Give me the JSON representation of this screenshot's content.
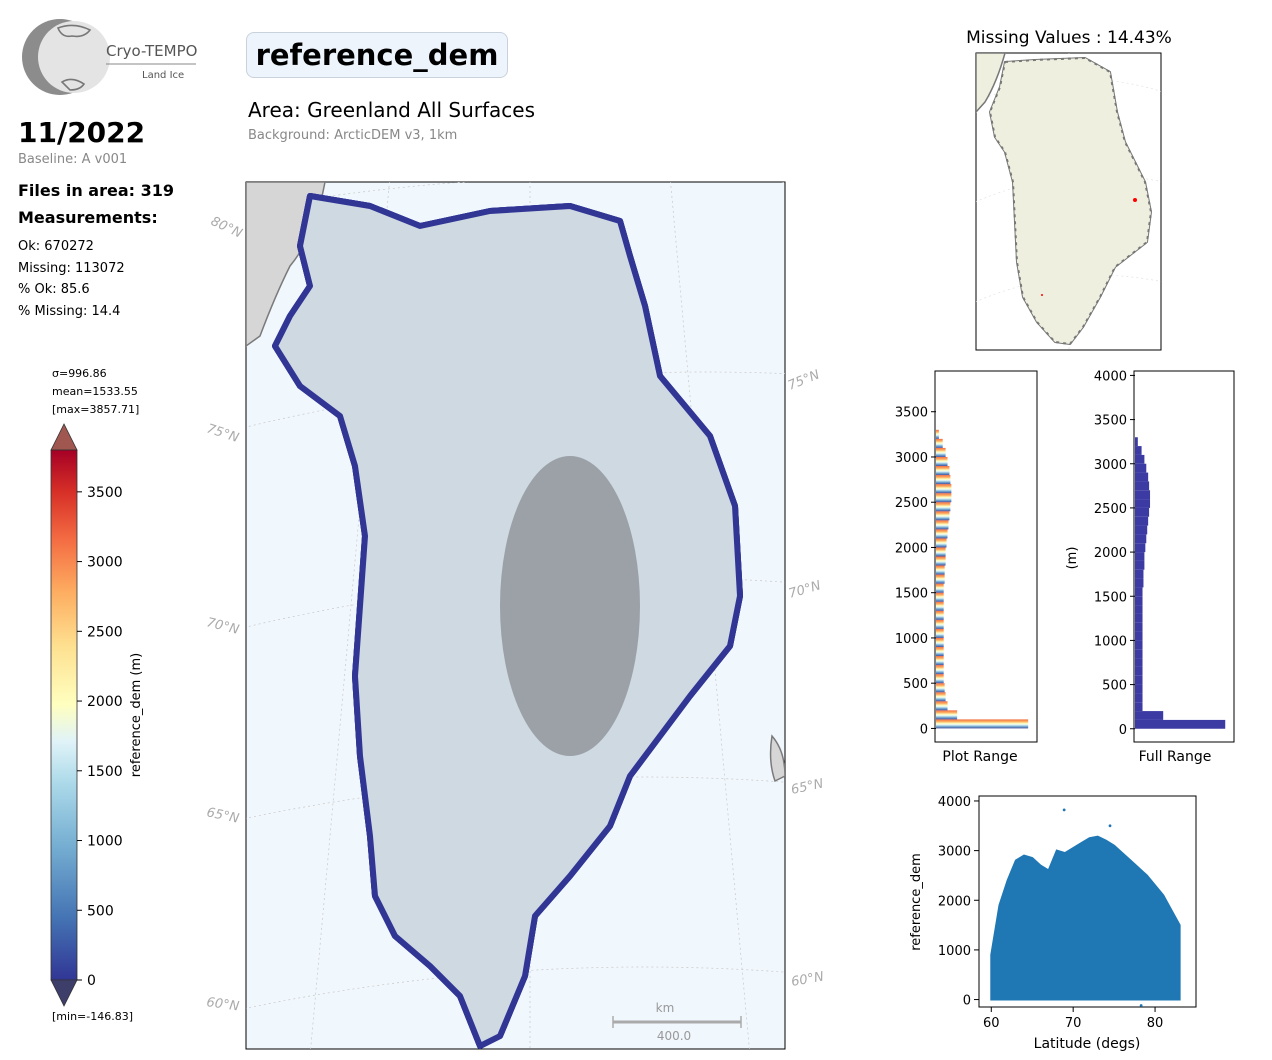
{
  "logo": {
    "name": "Cryo-TEMPO",
    "subtitle": "Land Ice"
  },
  "period": "11/2022",
  "baseline": "Baseline: A v001",
  "files_in_area": "Files in area: 319",
  "measurements_heading": "Measurements:",
  "measurements": [
    "Ok: 670272",
    "Missing: 113072",
    "% Ok: 85.6",
    "% Missing: 14.4"
  ],
  "param_title": "reference_dem",
  "area": "Area: Greenland All Surfaces",
  "background": "Background: ArcticDEM v3, 1km",
  "colorbar": {
    "stats": [
      "σ=996.86",
      "mean=1533.55",
      "[max=3857.71]"
    ],
    "min_label": "[min=-146.83]",
    "label": "reference_dem (m)",
    "ticks": [
      "3500",
      "3000",
      "2500",
      "2000",
      "1500",
      "1000",
      "500",
      "0"
    ]
  },
  "map": {
    "lat_labels_left": [
      "80°N",
      "75°N",
      "70°N",
      "65°N",
      "60°N"
    ],
    "lat_labels_right": [
      "75°N",
      "70°N",
      "65°N",
      "60°N"
    ],
    "scalebar_unit": "km",
    "scalebar_value": "400.0"
  },
  "missing_title": "Missing Values : 14.43%",
  "colors": {
    "track_low": "#313695",
    "track_high": "#a50026",
    "missing": "#ff0000",
    "land": "#efefdf",
    "hist_full": "#3b3ba3",
    "scatter": "#1f77b4"
  },
  "chart_data": [
    {
      "type": "bar",
      "orientation": "horizontal",
      "title": "",
      "xlabel": "Plot Range",
      "ylabel": "",
      "ylim": [
        -150,
        3950
      ],
      "y_ticks": [
        "0",
        "500",
        "1000",
        "1500",
        "2000",
        "2500",
        "3000",
        "3500"
      ],
      "bins": [
        0,
        100,
        200,
        300,
        400,
        500,
        600,
        700,
        800,
        900,
        1000,
        1100,
        1200,
        1300,
        1400,
        1500,
        1600,
        1700,
        1800,
        1900,
        2000,
        2100,
        2200,
        2300,
        2400,
        2500,
        2600,
        2700,
        2800,
        2900,
        3000,
        3100,
        3200
      ],
      "values": [
        96,
        22,
        12,
        10,
        9,
        8,
        8,
        8,
        8,
        8,
        8,
        8,
        8,
        8,
        8,
        8,
        9,
        9,
        10,
        10,
        11,
        12,
        13,
        14,
        15,
        16,
        16,
        15,
        14,
        12,
        10,
        7,
        3
      ]
    },
    {
      "type": "bar",
      "orientation": "horizontal",
      "title": "",
      "xlabel": "Full Range",
      "ylabel": "(m)",
      "ylim": [
        -150,
        4050
      ],
      "y_ticks": [
        "0",
        "500",
        "1000",
        "1500",
        "2000",
        "2500",
        "3000",
        "3500",
        "4000"
      ],
      "bins": [
        0,
        100,
        200,
        300,
        400,
        500,
        600,
        700,
        800,
        900,
        1000,
        1100,
        1200,
        1300,
        1400,
        1500,
        1600,
        1700,
        1800,
        1900,
        2000,
        2100,
        2200,
        2300,
        2400,
        2500,
        2600,
        2700,
        2800,
        2900,
        3000,
        3100,
        3200
      ],
      "values": [
        96,
        30,
        8,
        8,
        8,
        8,
        8,
        8,
        8,
        8,
        8,
        8,
        8,
        8,
        8,
        8,
        9,
        9,
        10,
        10,
        11,
        12,
        13,
        14,
        15,
        16,
        16,
        15,
        14,
        12,
        10,
        7,
        3
      ]
    },
    {
      "type": "scatter",
      "title": "",
      "xlabel": "Latitude (degs)",
      "ylabel": "reference_dem",
      "xlim": [
        58.5,
        85
      ],
      "ylim": [
        -150,
        4100
      ],
      "x_ticks": [
        "60",
        "70",
        "80"
      ],
      "y_ticks": [
        "0",
        "1000",
        "2000",
        "3000",
        "4000"
      ],
      "upper_envelope": {
        "x": [
          60,
          61,
          62,
          63,
          64,
          65,
          66,
          67,
          68,
          69,
          70,
          71,
          72,
          73,
          74,
          75,
          76,
          77,
          78,
          79,
          80,
          81,
          82,
          83
        ],
        "y": [
          900,
          1900,
          2400,
          2800,
          2900,
          2850,
          2700,
          2600,
          3000,
          2950,
          3050,
          3150,
          3250,
          3280,
          3200,
          3100,
          2950,
          2800,
          2650,
          2500,
          2300,
          2100,
          1800,
          1500
        ]
      },
      "outliers": {
        "x": [
          68.9,
          74.5,
          78.3
        ],
        "y": [
          3820,
          3500,
          -120
        ]
      }
    }
  ]
}
